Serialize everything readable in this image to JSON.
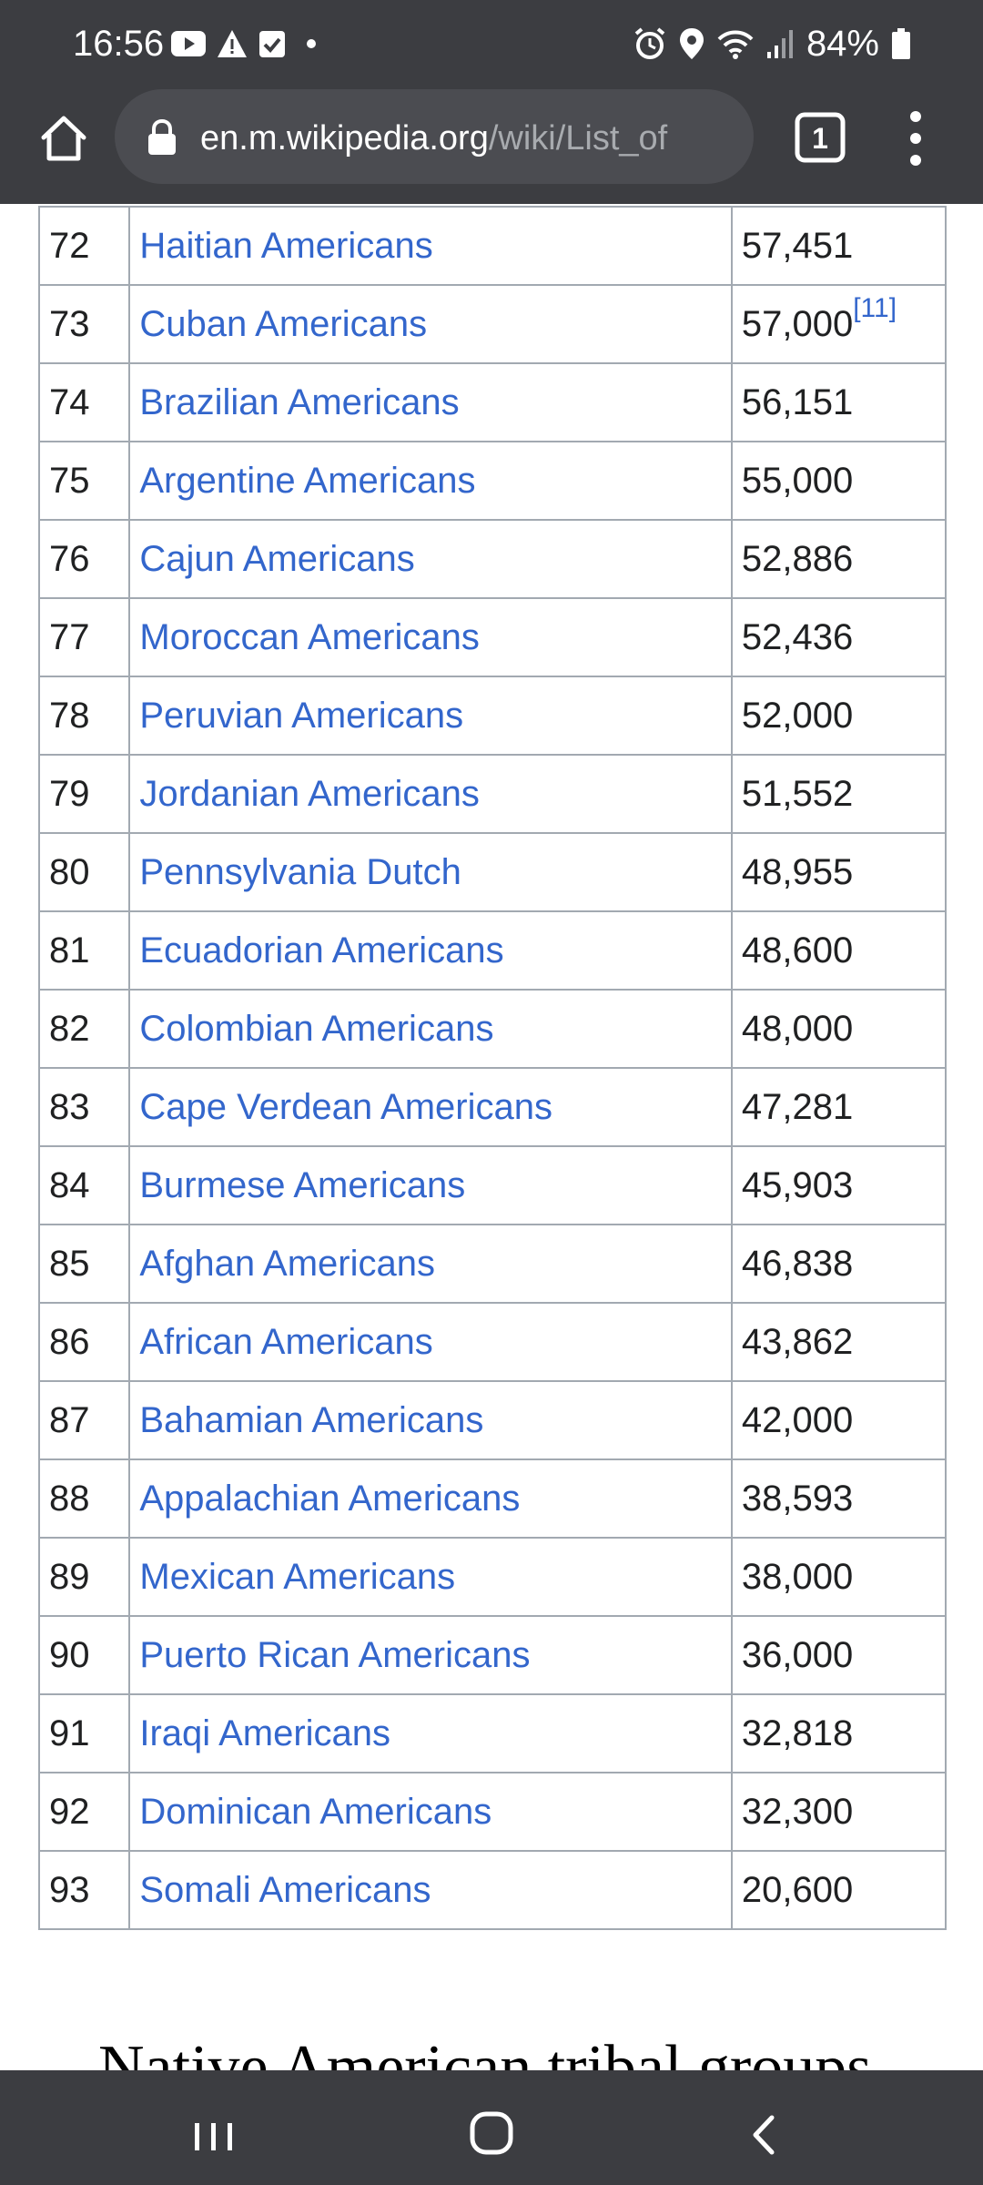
{
  "status_bar": {
    "time": "16:56",
    "battery": "84%",
    "left_icons": [
      "youtube-icon",
      "warning-icon",
      "checkbox-icon",
      "dot-icon"
    ],
    "right_icons": [
      "alarm-icon",
      "location-icon",
      "wifi-icon",
      "signal-icon",
      "battery-icon"
    ]
  },
  "toolbar": {
    "url_domain": "en.m.wikipedia.org",
    "url_path": "/wiki/List_of",
    "tab_count": "1"
  },
  "table": {
    "rows": [
      {
        "rank": "72",
        "group": "Haitian Americans",
        "population": "57,451",
        "ref": ""
      },
      {
        "rank": "73",
        "group": "Cuban Americans",
        "population": "57,000",
        "ref": "[11]"
      },
      {
        "rank": "74",
        "group": "Brazilian Americans",
        "population": "56,151",
        "ref": ""
      },
      {
        "rank": "75",
        "group": "Argentine Americans",
        "population": "55,000",
        "ref": ""
      },
      {
        "rank": "76",
        "group": "Cajun Americans",
        "population": "52,886",
        "ref": ""
      },
      {
        "rank": "77",
        "group": "Moroccan Americans",
        "population": "52,436",
        "ref": ""
      },
      {
        "rank": "78",
        "group": "Peruvian Americans",
        "population": "52,000",
        "ref": ""
      },
      {
        "rank": "79",
        "group": "Jordanian Americans",
        "population": "51,552",
        "ref": ""
      },
      {
        "rank": "80",
        "group": "Pennsylvania Dutch",
        "population": "48,955",
        "ref": ""
      },
      {
        "rank": "81",
        "group": "Ecuadorian Americans",
        "population": "48,600",
        "ref": ""
      },
      {
        "rank": "82",
        "group": "Colombian Americans",
        "population": "48,000",
        "ref": ""
      },
      {
        "rank": "83",
        "group": "Cape Verdean Americans",
        "population": "47,281",
        "ref": ""
      },
      {
        "rank": "84",
        "group": "Burmese Americans",
        "population": "45,903",
        "ref": ""
      },
      {
        "rank": "85",
        "group": "Afghan Americans",
        "population": "46,838",
        "ref": ""
      },
      {
        "rank": "86",
        "group": "African Americans",
        "population": "43,862",
        "ref": ""
      },
      {
        "rank": "87",
        "group": "Bahamian Americans",
        "population": "42,000",
        "ref": ""
      },
      {
        "rank": "88",
        "group": "Appalachian Americans",
        "population": "38,593",
        "ref": ""
      },
      {
        "rank": "89",
        "group": "Mexican Americans",
        "population": "38,000",
        "ref": ""
      },
      {
        "rank": "90",
        "group": "Puerto Rican Americans",
        "population": "36,000",
        "ref": ""
      },
      {
        "rank": "91",
        "group": "Iraqi Americans",
        "population": "32,818",
        "ref": ""
      },
      {
        "rank": "92",
        "group": "Dominican Americans",
        "population": "32,300",
        "ref": ""
      },
      {
        "rank": "93",
        "group": "Somali Americans",
        "population": "20,600",
        "ref": ""
      }
    ]
  },
  "next_section": {
    "heading": "Native American tribal groups"
  },
  "nav_bar": {
    "icons": [
      "recent-apps-icon",
      "home-icon",
      "back-icon"
    ]
  },
  "colors": {
    "chrome": "#3c3d41",
    "url_bar": "#4b4c51",
    "link": "#3366cc",
    "border": "#a2a9b1",
    "text": "#202122"
  }
}
